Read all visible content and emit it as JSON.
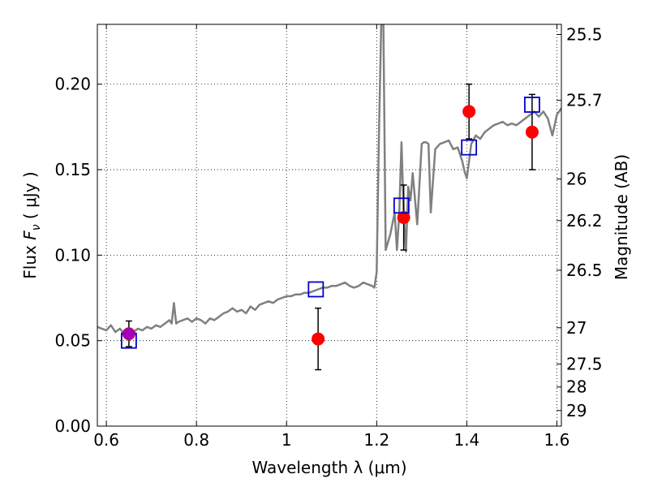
{
  "chart_data": {
    "type": "scatter",
    "xlabel": "Wavelength  λ (μm)",
    "ylabel": "Flux  F_ν  ( μJy )",
    "ylabel_parts": {
      "prefix": "Flux  ",
      "symbol": "F",
      "subscript": "ν",
      "suffix": " ( μJy )"
    },
    "right_ylabel": "Magnitude (AB)",
    "xlim": [
      0.58,
      1.61
    ],
    "ylim": [
      0.0,
      0.235
    ],
    "grid": true,
    "x_ticks": [
      {
        "value": 0.6,
        "label": "0.6"
      },
      {
        "value": 0.8,
        "label": "0.8"
      },
      {
        "value": 1.0,
        "label": "1"
      },
      {
        "value": 1.2,
        "label": "1.2"
      },
      {
        "value": 1.4,
        "label": "1.4"
      },
      {
        "value": 1.6,
        "label": "1.6"
      }
    ],
    "y_ticks": [
      {
        "value": 0.0,
        "label": "0.00"
      },
      {
        "value": 0.05,
        "label": "0.05"
      },
      {
        "value": 0.1,
        "label": "0.10"
      },
      {
        "value": 0.15,
        "label": "0.15"
      },
      {
        "value": 0.2,
        "label": "0.20"
      }
    ],
    "right_ticks": [
      {
        "value": 25.5,
        "label": "25.5"
      },
      {
        "value": 25.7,
        "label": "25.7"
      },
      {
        "value": 26.0,
        "label": "26"
      },
      {
        "value": 26.2,
        "label": "26.2"
      },
      {
        "value": 26.5,
        "label": "26.5"
      },
      {
        "value": 27.0,
        "label": "27"
      },
      {
        "value": 27.5,
        "label": "27.5"
      },
      {
        "value": 28.0,
        "label": "28"
      },
      {
        "value": 29.0,
        "label": "29"
      }
    ],
    "template_spectrum": {
      "color": "#808080",
      "x": [
        0.58,
        0.59,
        0.6,
        0.61,
        0.62,
        0.63,
        0.64,
        0.65,
        0.66,
        0.67,
        0.68,
        0.69,
        0.7,
        0.71,
        0.72,
        0.73,
        0.74,
        0.745,
        0.75,
        0.755,
        0.76,
        0.77,
        0.78,
        0.79,
        0.8,
        0.81,
        0.82,
        0.83,
        0.84,
        0.85,
        0.86,
        0.87,
        0.88,
        0.89,
        0.9,
        0.91,
        0.92,
        0.93,
        0.94,
        0.95,
        0.96,
        0.97,
        0.98,
        0.99,
        1.0,
        1.01,
        1.02,
        1.03,
        1.04,
        1.05,
        1.06,
        1.07,
        1.08,
        1.09,
        1.1,
        1.11,
        1.12,
        1.13,
        1.14,
        1.15,
        1.16,
        1.17,
        1.18,
        1.19,
        1.195,
        1.2,
        1.205,
        1.21,
        1.215,
        1.22,
        1.23,
        1.24,
        1.245,
        1.25,
        1.255,
        1.26,
        1.265,
        1.27,
        1.275,
        1.28,
        1.29,
        1.3,
        1.305,
        1.31,
        1.315,
        1.32,
        1.33,
        1.34,
        1.35,
        1.36,
        1.37,
        1.38,
        1.39,
        1.395,
        1.4,
        1.405,
        1.41,
        1.42,
        1.43,
        1.44,
        1.45,
        1.46,
        1.47,
        1.48,
        1.49,
        1.5,
        1.51,
        1.52,
        1.53,
        1.54,
        1.55,
        1.56,
        1.57,
        1.58,
        1.59,
        1.6,
        1.61
      ],
      "y": [
        0.058,
        0.057,
        0.056,
        0.059,
        0.055,
        0.057,
        0.054,
        0.056,
        0.055,
        0.057,
        0.056,
        0.058,
        0.057,
        0.059,
        0.058,
        0.06,
        0.062,
        0.06,
        0.072,
        0.06,
        0.061,
        0.062,
        0.063,
        0.061,
        0.063,
        0.062,
        0.06,
        0.063,
        0.062,
        0.064,
        0.066,
        0.067,
        0.069,
        0.067,
        0.068,
        0.066,
        0.07,
        0.068,
        0.071,
        0.072,
        0.073,
        0.072,
        0.074,
        0.075,
        0.076,
        0.076,
        0.077,
        0.077,
        0.078,
        0.078,
        0.079,
        0.08,
        0.081,
        0.081,
        0.082,
        0.082,
        0.083,
        0.084,
        0.082,
        0.081,
        0.082,
        0.084,
        0.083,
        0.082,
        0.081,
        0.09,
        0.17,
        0.235,
        0.235,
        0.103,
        0.112,
        0.125,
        0.103,
        0.124,
        0.166,
        0.125,
        0.102,
        0.14,
        0.132,
        0.148,
        0.118,
        0.165,
        0.166,
        0.166,
        0.165,
        0.125,
        0.162,
        0.165,
        0.166,
        0.167,
        0.162,
        0.163,
        0.155,
        0.149,
        0.145,
        0.155,
        0.165,
        0.17,
        0.168,
        0.172,
        0.174,
        0.176,
        0.177,
        0.178,
        0.176,
        0.177,
        0.176,
        0.178,
        0.18,
        0.182,
        0.184,
        0.181,
        0.184,
        0.18,
        0.17,
        0.182,
        0.186
      ]
    },
    "series": [
      {
        "marker": "circle",
        "color": "#ff0000",
        "points": [
          {
            "x": 0.65,
            "y": 0.054,
            "err": 0.0075
          },
          {
            "x": 1.07,
            "y": 0.051,
            "err": 0.018
          },
          {
            "x": 1.26,
            "y": 0.122,
            "err": 0.019
          },
          {
            "x": 1.405,
            "y": 0.184,
            "err": 0.016
          },
          {
            "x": 1.545,
            "y": 0.172,
            "err": 0.022
          }
        ]
      },
      {
        "marker": "square",
        "color": "#0000cc",
        "points": [
          {
            "x": 0.65,
            "y": 0.05
          },
          {
            "x": 1.065,
            "y": 0.08
          },
          {
            "x": 1.255,
            "y": 0.129
          },
          {
            "x": 1.405,
            "y": 0.163
          },
          {
            "x": 1.545,
            "y": 0.188
          }
        ]
      }
    ],
    "overlay_markers": [
      {
        "x": 0.65,
        "y": 0.054,
        "marker": "circle",
        "color": "#a000c8"
      }
    ]
  }
}
